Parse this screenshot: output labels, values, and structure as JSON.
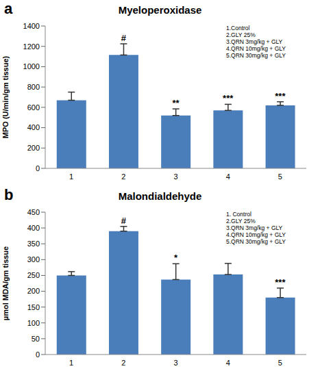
{
  "chart_data": [
    {
      "type": "bar",
      "panel": "a",
      "title": "Myeloperoxidase",
      "y_label": "MPO (U/min/gm tissue)",
      "categories": [
        "1",
        "2",
        "3",
        "4",
        "5"
      ],
      "values": [
        670,
        1115,
        520,
        570,
        620
      ],
      "error": [
        80,
        110,
        65,
        60,
        35
      ],
      "significance": [
        null,
        "#",
        "**",
        "***",
        "***"
      ],
      "color": "#4a7ebb",
      "ylim": [
        0,
        1400
      ],
      "yticks": [
        0,
        200,
        400,
        600,
        800,
        1000,
        1200,
        1400
      ],
      "grid": false,
      "annotations": [
        "1.Control",
        "2.GLY 25%",
        "3.QRN 3mg/kg + GLY",
        "4.QRN 10mg/kg + GLY",
        "5.QRN 30mg/kg + GLY"
      ]
    },
    {
      "type": "bar",
      "panel": "b",
      "title": "Malondialdehyde",
      "y_label": "µmol MDA/gm tissue",
      "categories": [
        "1",
        "2",
        "3",
        "4",
        "5"
      ],
      "values": [
        250,
        390,
        237,
        253,
        180
      ],
      "error": [
        12,
        15,
        50,
        35,
        30
      ],
      "significance": [
        null,
        "#",
        "*",
        null,
        "***"
      ],
      "color": "#4a7ebb",
      "ylim": [
        0,
        450
      ],
      "yticks": [
        0,
        50,
        100,
        150,
        200,
        250,
        300,
        350,
        400,
        450
      ],
      "grid": false,
      "annotations": [
        "1. Control",
        "2.GLY 25%",
        "3.QRN 3mg/kg + GLY",
        "4.QRN 10mg/kg + GLY",
        "5.QRN 30mg/kg + GLY"
      ]
    }
  ]
}
